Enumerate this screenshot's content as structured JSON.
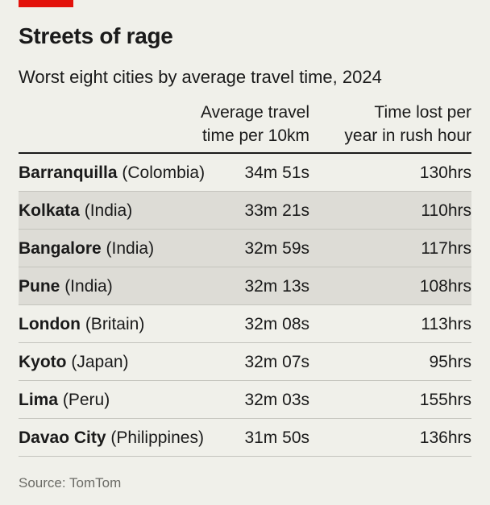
{
  "header": {
    "title": "Streets of rage",
    "subtitle": "Worst eight cities by average travel time, 2024"
  },
  "colors": {
    "accent": "#e3120b",
    "background": "#f0f0ea",
    "shaded_row": "#dddcd6"
  },
  "chart_data": {
    "type": "table",
    "columns": [
      {
        "label_line1": "Average travel",
        "label_line2": "time per 10km"
      },
      {
        "label_line1": "Time lost per",
        "label_line2": "year in rush hour"
      }
    ],
    "rows": [
      {
        "city": "Barranquilla",
        "country": "(Colombia)",
        "travel_time": "34m 51s",
        "time_lost": "130hrs",
        "shaded": false
      },
      {
        "city": "Kolkata",
        "country": "(India)",
        "travel_time": "33m 21s",
        "time_lost": "110hrs",
        "shaded": true
      },
      {
        "city": "Bangalore",
        "country": "(India)",
        "travel_time": "32m 59s",
        "time_lost": "117hrs",
        "shaded": true
      },
      {
        "city": "Pune",
        "country": "(India)",
        "travel_time": "32m 13s",
        "time_lost": "108hrs",
        "shaded": true
      },
      {
        "city": "London",
        "country": "(Britain)",
        "travel_time": "32m 08s",
        "time_lost": "113hrs",
        "shaded": false
      },
      {
        "city": "Kyoto",
        "country": "(Japan)",
        "travel_time": "32m 07s",
        "time_lost": "95hrs",
        "shaded": false
      },
      {
        "city": "Lima",
        "country": "(Peru)",
        "travel_time": "32m 03s",
        "time_lost": "155hrs",
        "shaded": false
      },
      {
        "city": "Davao City",
        "country": "(Philippines)",
        "travel_time": "31m 50s",
        "time_lost": "136hrs",
        "shaded": false
      }
    ]
  },
  "footer": {
    "source": "Source: TomTom"
  }
}
